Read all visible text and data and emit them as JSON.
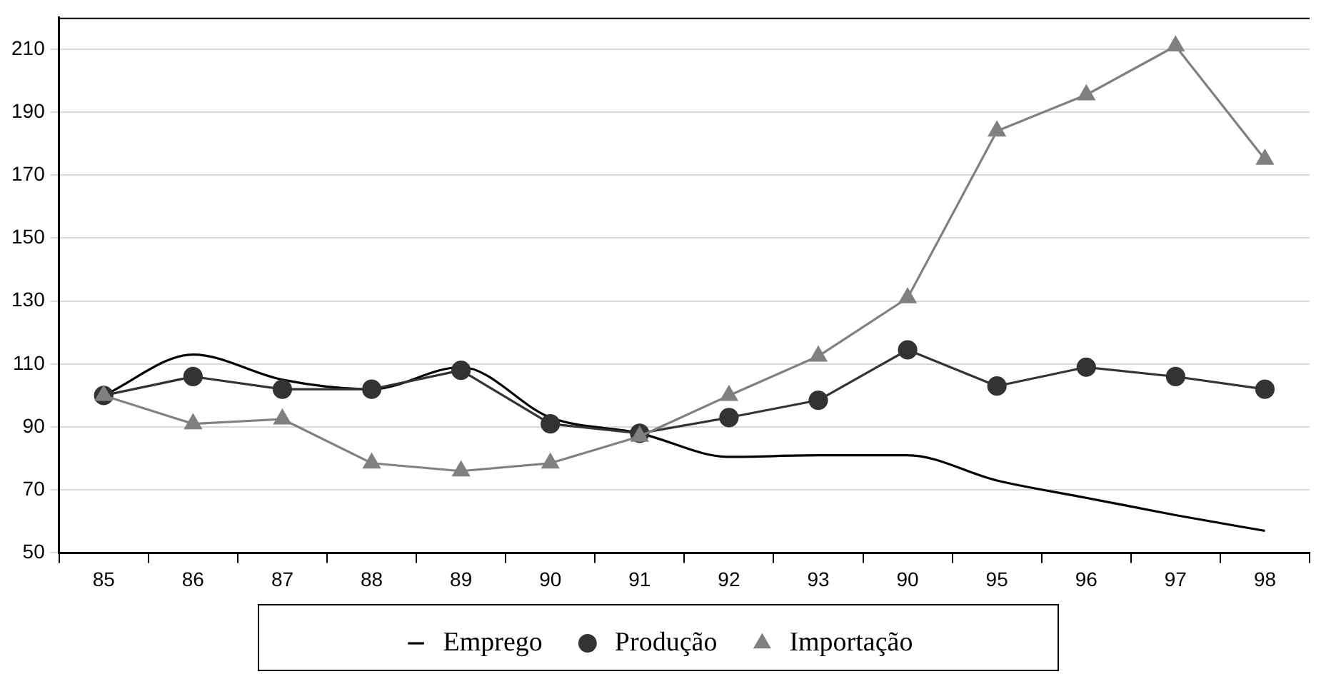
{
  "chart_data": {
    "type": "line",
    "categories": [
      "85",
      "86",
      "87",
      "88",
      "89",
      "90",
      "91",
      "92",
      "93",
      "90",
      "95",
      "96",
      "97",
      "98"
    ],
    "series": [
      {
        "name": "Emprego",
        "color": "#000000",
        "marker": "none",
        "values": [
          100,
          113,
          105,
          102,
          109,
          93,
          88,
          80.5,
          81,
          81,
          73,
          67.5,
          62,
          57
        ]
      },
      {
        "name": "Produção",
        "color": "#333333",
        "marker": "circle",
        "values": [
          100,
          106,
          102,
          102,
          108,
          91,
          88,
          93,
          98.5,
          114.5,
          103,
          109,
          106,
          102
        ]
      },
      {
        "name": "Importação",
        "color": "#808080",
        "marker": "triangle",
        "values": [
          100,
          91,
          92.5,
          78.5,
          76,
          78.5,
          87,
          100,
          112.5,
          131,
          184,
          195.5,
          211,
          175
        ]
      }
    ],
    "ylim": [
      50,
      220
    ],
    "yticks": [
      50,
      70,
      90,
      110,
      130,
      150,
      170,
      190,
      210
    ],
    "grid": "y",
    "legend": "bottom"
  }
}
